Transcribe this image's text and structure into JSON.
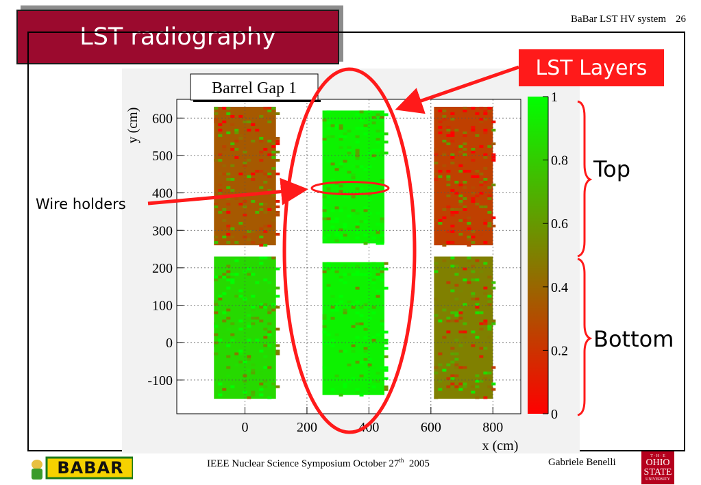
{
  "slide": {
    "title": "LST radiography",
    "header_title": "BaBar LST HV system",
    "page_number": "26",
    "footer_center": "IEEE Nuclear Science Symposium  October 27",
    "footer_sup": "th",
    "footer_year": "  2005",
    "footer_author": "Gabriele Benelli",
    "logo_left": "BABAR",
    "logo_right_lines": [
      "T · H · E",
      "OHIO",
      "STATE",
      "UNIVERSITY"
    ],
    "colors": {
      "title_bg": "#9b0a2e",
      "annotation_red": "#ff1a1a",
      "dead": "#ff2020",
      "live": "#19ff19"
    }
  },
  "annotations": {
    "lst_layers": "LST Layers",
    "wire_holders": "Wire holders",
    "top": "Top",
    "bottom": "Bottom"
  },
  "chart_data": {
    "type": "heatmap",
    "title": "Barrel Gap 1",
    "xlabel": "x (cm)",
    "ylabel": "y (cm)",
    "xlim": [
      -220,
      890
    ],
    "ylim": [
      -190,
      650
    ],
    "x_ticks": [
      0,
      200,
      400,
      600,
      800
    ],
    "y_ticks": [
      -100,
      0,
      100,
      200,
      300,
      400,
      500,
      600
    ],
    "colorbar": {
      "min": 0,
      "max": 1,
      "ticks": [
        0,
        0.2,
        0.4,
        0.6,
        0.8,
        1
      ],
      "colors": [
        "#ff0000",
        "#00ff00"
      ]
    },
    "regions": [
      {
        "x": [
          -100,
          100
        ],
        "y": [
          260,
          630
        ],
        "mean_efficiency": 0.35,
        "note": "left column top"
      },
      {
        "x": [
          -100,
          100
        ],
        "y": [
          -150,
          230
        ],
        "mean_efficiency": 0.85,
        "note": "left column bottom"
      },
      {
        "x": [
          250,
          450
        ],
        "y": [
          265,
          620
        ],
        "mean_efficiency": 0.95,
        "note": "middle column top"
      },
      {
        "x": [
          250,
          450
        ],
        "y": [
          -140,
          215
        ],
        "mean_efficiency": 0.95,
        "note": "middle column bottom"
      },
      {
        "x": [
          610,
          800
        ],
        "y": [
          260,
          630
        ],
        "mean_efficiency": 0.25,
        "note": "right column top"
      },
      {
        "x": [
          610,
          800
        ],
        "y": [
          -150,
          230
        ],
        "mean_efficiency": 0.5,
        "note": "right column bottom"
      }
    ],
    "wire_holder_y": 400
  }
}
